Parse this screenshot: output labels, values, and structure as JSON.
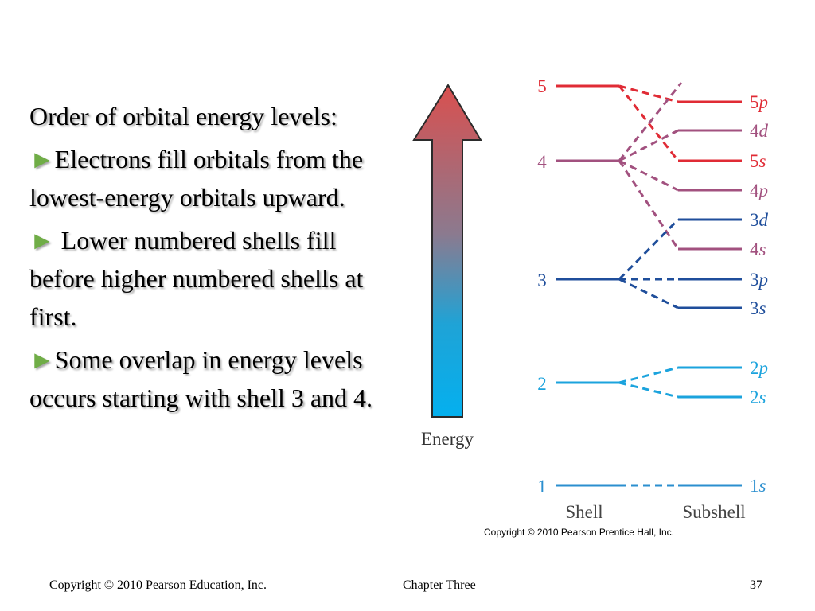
{
  "slide": {
    "bullets": {
      "intro": "Order of orbital energy levels:",
      "items": [
        {
          "marker": "►",
          "text": "Electrons fill orbitals from the lowest-energy orbitals upward."
        },
        {
          "marker": "►",
          "text": " Lower numbered shells fill before higher numbered shells at first."
        },
        {
          "marker": "►",
          "text": "Some overlap in energy levels occurs starting with shell 3 and 4."
        }
      ]
    },
    "diagram": {
      "energy_label": "Energy",
      "shell_header": "Shell",
      "subshell_header": "Subshell",
      "credit": "Copyright © 2010 Pearson Prentice Hall, Inc.",
      "shells": [
        {
          "label": "5",
          "color": "#e02b35"
        },
        {
          "label": "4",
          "color": "#a2517f"
        },
        {
          "label": "3",
          "color": "#1f4e9b"
        },
        {
          "label": "2",
          "color": "#1ba3dd"
        },
        {
          "label": "1",
          "color": "#2b8fcf"
        }
      ],
      "subshells": [
        {
          "num": "5",
          "letter": "p",
          "color": "#e02b35"
        },
        {
          "num": "4",
          "letter": "d",
          "color": "#a2517f"
        },
        {
          "num": "5",
          "letter": "s",
          "color": "#e02b35"
        },
        {
          "num": "4",
          "letter": "p",
          "color": "#a2517f"
        },
        {
          "num": "3",
          "letter": "d",
          "color": "#1f4e9b"
        },
        {
          "num": "4",
          "letter": "s",
          "color": "#a2517f"
        },
        {
          "num": "3",
          "letter": "p",
          "color": "#1f4e9b"
        },
        {
          "num": "3",
          "letter": "s",
          "color": "#1f4e9b"
        },
        {
          "num": "2",
          "letter": "p",
          "color": "#1ba3dd"
        },
        {
          "num": "2",
          "letter": "s",
          "color": "#1ba3dd"
        },
        {
          "num": "1",
          "letter": "s",
          "color": "#2b8fcf"
        }
      ]
    },
    "footer": {
      "copyright": "Copyright © 2010 Pearson Education, Inc.",
      "chapter": "Chapter Three",
      "page": "37"
    }
  }
}
